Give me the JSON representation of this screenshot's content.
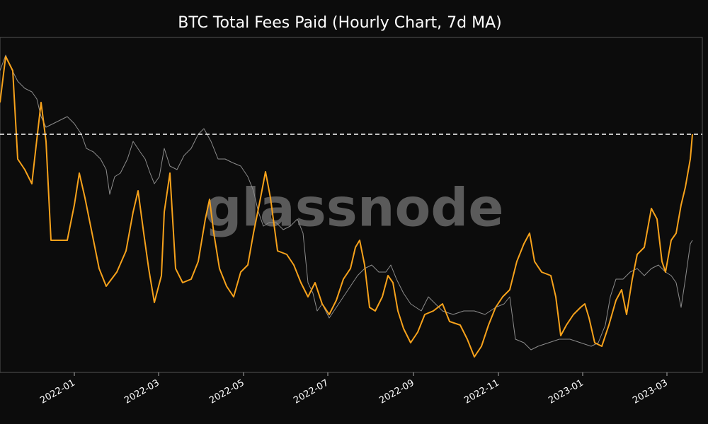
{
  "chart_data": {
    "type": "line",
    "title": "BTC Total Fees Paid (Hourly Chart, 7d MA)",
    "watermark": "glassnode",
    "xlim": [
      -105,
      887
    ],
    "ylim": [
      0,
      474
    ],
    "xticks": [
      {
        "value": 0,
        "label": "2022-01"
      },
      {
        "value": 119,
        "label": "2022-03"
      },
      {
        "value": 239,
        "label": "2022-05"
      },
      {
        "value": 358,
        "label": "2022-07"
      },
      {
        "value": 479,
        "label": "2022-09"
      },
      {
        "value": 599,
        "label": "2022-11"
      },
      {
        "value": 718,
        "label": "2023-01"
      },
      {
        "value": 837,
        "label": "2023-03"
      }
    ],
    "hline": 337,
    "hline_color": "#ffffff",
    "series": [
      {
        "color": "#8c8c8c",
        "x": [
          -105,
          -97,
          -90,
          -80,
          -70,
          -60,
          -53,
          -47,
          -40,
          -30,
          -20,
          -10,
          0,
          10,
          17,
          27,
          37,
          45,
          50,
          57,
          65,
          75,
          83,
          93,
          100,
          107,
          113,
          120,
          127,
          135,
          145,
          155,
          165,
          175,
          183,
          193,
          203,
          213,
          223,
          235,
          245,
          253,
          260,
          267,
          275,
          285,
          295,
          305,
          315,
          323,
          330,
          337,
          343,
          350,
          360,
          370,
          380,
          390,
          400,
          410,
          420,
          430,
          440,
          447,
          455,
          465,
          475,
          490,
          500,
          510,
          520,
          535,
          550,
          565,
          580,
          595,
          607,
          615,
          623,
          635,
          645,
          655,
          670,
          685,
          700,
          715,
          730,
          740,
          750,
          757,
          765,
          775,
          785,
          795,
          805,
          815,
          825,
          835,
          843,
          850,
          857,
          863,
          870,
          873
        ],
        "values": [
          427,
          449,
          432,
          412,
          402,
          397,
          387,
          362,
          347,
          352,
          357,
          362,
          352,
          337,
          317,
          312,
          302,
          287,
          252,
          277,
          282,
          302,
          327,
          312,
          302,
          282,
          267,
          277,
          317,
          292,
          287,
          307,
          317,
          337,
          345,
          327,
          302,
          302,
          297,
          292,
          277,
          257,
          227,
          207,
          212,
          212,
          202,
          207,
          217,
          197,
          127,
          112,
          87,
          97,
          77,
          92,
          107,
          122,
          137,
          147,
          152,
          142,
          142,
          152,
          132,
          112,
          97,
          87,
          107,
          97,
          87,
          82,
          87,
          87,
          82,
          92,
          97,
          107,
          47,
          42,
          32,
          37,
          42,
          47,
          47,
          42,
          37,
          42,
          67,
          107,
          132,
          132,
          142,
          147,
          137,
          147,
          152,
          142,
          137,
          127,
          92,
          132,
          182,
          187
        ]
      },
      {
        "color": "#f7a21b",
        "x": [
          -105,
          -97,
          -87,
          -80,
          -70,
          -60,
          -55,
          -47,
          -40,
          -33,
          -20,
          -10,
          0,
          7,
          15,
          25,
          35,
          45,
          60,
          73,
          83,
          90,
          98,
          105,
          113,
          123,
          127,
          135,
          143,
          153,
          165,
          175,
          185,
          191,
          197,
          205,
          215,
          225,
          235,
          245,
          253,
          263,
          270,
          277,
          287,
          300,
          310,
          320,
          330,
          340,
          350,
          360,
          370,
          380,
          390,
          397,
          403,
          410,
          417,
          425,
          435,
          443,
          450,
          457,
          465,
          475,
          485,
          495,
          507,
          520,
          530,
          545,
          555,
          565,
          575,
          585,
          595,
          605,
          615,
          625,
          635,
          643,
          650,
          660,
          673,
          680,
          687,
          695,
          705,
          715,
          721,
          727,
          735,
          745,
          755,
          765,
          773,
          780,
          788,
          795,
          805,
          815,
          823,
          830,
          835,
          843,
          850,
          857,
          863,
          870,
          873
        ],
        "values": [
          382,
          447,
          427,
          302,
          287,
          267,
          312,
          382,
          327,
          187,
          187,
          187,
          237,
          282,
          247,
          197,
          147,
          122,
          142,
          172,
          227,
          257,
          197,
          147,
          99,
          137,
          227,
          282,
          147,
          127,
          132,
          157,
          217,
          245,
          197,
          147,
          122,
          107,
          142,
          152,
          197,
          247,
          284,
          247,
          172,
          167,
          152,
          127,
          107,
          127,
          97,
          82,
          102,
          132,
          147,
          177,
          187,
          152,
          92,
          87,
          107,
          137,
          127,
          87,
          62,
          42,
          57,
          82,
          87,
          97,
          72,
          67,
          47,
          22,
          37,
          67,
          92,
          107,
          117,
          157,
          182,
          197,
          157,
          142,
          137,
          107,
          52,
          67,
          82,
          92,
          97,
          77,
          42,
          37,
          67,
          102,
          117,
          82,
          132,
          167,
          177,
          232,
          217,
          157,
          142,
          187,
          197,
          237,
          262,
          302,
          337
        ]
      }
    ]
  }
}
